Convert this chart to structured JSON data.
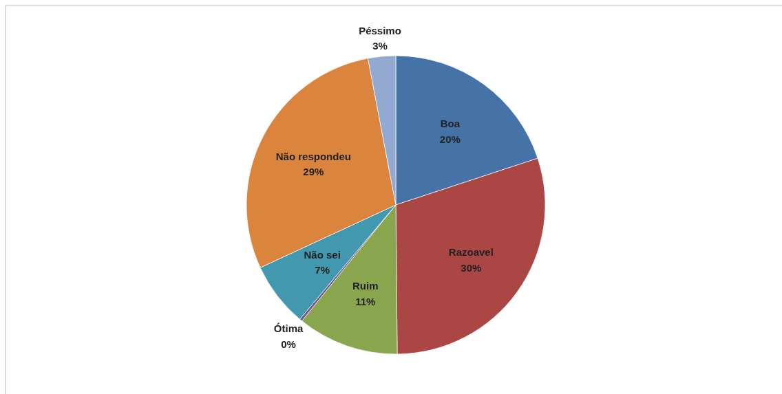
{
  "chart_data": {
    "type": "pie",
    "categories": [
      "Boa",
      "Razoavel",
      "Ruim",
      "Ótima",
      "Não sei",
      "Não respondeu",
      "Péssimo"
    ],
    "values": [
      20,
      30,
      11,
      0.3,
      7,
      29,
      3
    ],
    "value_labels": [
      "20%",
      "30%",
      "11%",
      "0%",
      "7%",
      "29%",
      "3%"
    ],
    "colors": [
      "#4572a7",
      "#aa4643",
      "#89a54e",
      "#71588f",
      "#4198af",
      "#db843d",
      "#93a9cf"
    ],
    "legend": false
  }
}
